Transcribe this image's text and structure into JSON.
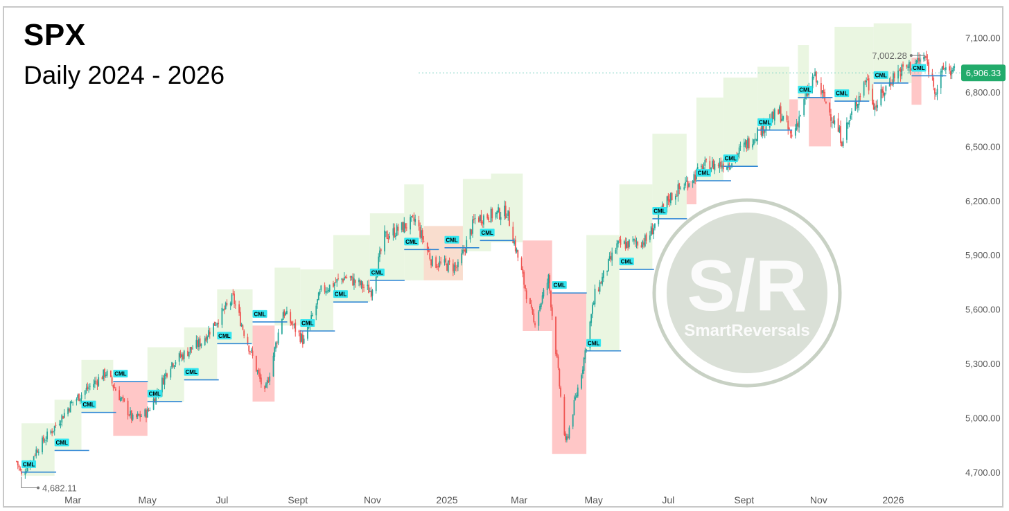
{
  "chart_data": {
    "type": "candlestick",
    "title": "SPX",
    "subtitle": "Daily 2024 - 2026",
    "watermark": {
      "main": "S/R",
      "sub": "SmartReversals"
    },
    "y_axis": {
      "range": [
        4600,
        7240
      ],
      "ticks": [
        "7,100.00",
        "6,800.00",
        "6,500.00",
        "6,200.00",
        "5,900.00",
        "5,600.00",
        "5,300.00",
        "5,000.00",
        "4,700.00"
      ],
      "tick_values": [
        7100,
        6800,
        6500,
        6200,
        5900,
        5600,
        5300,
        5000,
        4700
      ]
    },
    "x_axis": {
      "range": [
        "2024-01-15",
        "2026-02-25"
      ],
      "labels": [
        "Mar",
        "May",
        "Jul",
        "Sept",
        "Nov",
        "2025",
        "Mar",
        "May",
        "Jul",
        "Sept",
        "Nov",
        "2026"
      ],
      "label_dates": [
        "2024-03-01",
        "2024-05-01",
        "2024-07-01",
        "2024-09-01",
        "2024-11-01",
        "2025-01-01",
        "2025-03-01",
        "2025-05-01",
        "2025-07-01",
        "2025-09-01",
        "2025-11-01",
        "2026-01-01"
      ]
    },
    "annotations": {
      "high": {
        "label": "7,002.28",
        "value": 7002.28,
        "date": "2026-01-27"
      },
      "low": {
        "label": "4,682.11",
        "value": 4682.11,
        "date": "2024-01-19"
      },
      "last_price": {
        "label": "6,906.33",
        "value": 6906.33
      }
    },
    "price_path": [
      [
        "2024-01-15",
        4760
      ],
      [
        "2024-01-19",
        4682
      ],
      [
        "2024-02-01",
        4830
      ],
      [
        "2024-02-15",
        4950
      ],
      [
        "2024-03-01",
        5090
      ],
      [
        "2024-03-28",
        5250
      ],
      [
        "2024-04-19",
        4990
      ],
      [
        "2024-05-01",
        5030
      ],
      [
        "2024-05-20",
        5300
      ],
      [
        "2024-06-14",
        5420
      ],
      [
        "2024-07-10",
        5660
      ],
      [
        "2024-08-05",
        5130
      ],
      [
        "2024-08-20",
        5590
      ],
      [
        "2024-09-06",
        5420
      ],
      [
        "2024-09-20",
        5700
      ],
      [
        "2024-10-10",
        5780
      ],
      [
        "2024-10-31",
        5700
      ],
      [
        "2024-11-11",
        6000
      ],
      [
        "2024-12-06",
        6090
      ],
      [
        "2024-12-20",
        5860
      ],
      [
        "2025-01-10",
        5830
      ],
      [
        "2025-01-24",
        6100
      ],
      [
        "2025-02-19",
        6140
      ],
      [
        "2025-03-13",
        5520
      ],
      [
        "2025-03-25",
        5770
      ],
      [
        "2025-04-08",
        4850
      ],
      [
        "2025-04-22",
        5290
      ],
      [
        "2025-05-02",
        5680
      ],
      [
        "2025-05-20",
        5950
      ],
      [
        "2025-06-13",
        5980
      ],
      [
        "2025-07-01",
        6210
      ],
      [
        "2025-07-31",
        6390
      ],
      [
        "2025-08-20",
        6410
      ],
      [
        "2025-09-12",
        6580
      ],
      [
        "2025-09-30",
        6690
      ],
      [
        "2025-10-10",
        6550
      ],
      [
        "2025-10-28",
        6890
      ],
      [
        "2025-11-20",
        6540
      ],
      [
        "2025-12-10",
        6880
      ],
      [
        "2025-12-17",
        6720
      ],
      [
        "2026-01-02",
        6900
      ],
      [
        "2026-01-27",
        6990
      ],
      [
        "2026-02-05",
        6810
      ],
      [
        "2026-02-12",
        6940
      ],
      [
        "2026-02-20",
        6906
      ]
    ],
    "zones": [
      {
        "type": "bull",
        "start": "2024-01-19",
        "end": "2024-02-15",
        "low": 4680,
        "high": 4970
      },
      {
        "type": "bull",
        "start": "2024-02-15",
        "end": "2024-03-08",
        "low": 4820,
        "high": 5100
      },
      {
        "type": "bull",
        "start": "2024-03-08",
        "end": "2024-04-03",
        "low": 5030,
        "high": 5320
      },
      {
        "type": "bear",
        "start": "2024-04-03",
        "end": "2024-05-01",
        "low": 4900,
        "high": 5200
      },
      {
        "type": "bull",
        "start": "2024-05-01",
        "end": "2024-05-31",
        "low": 5090,
        "high": 5390
      },
      {
        "type": "bull",
        "start": "2024-05-31",
        "end": "2024-06-27",
        "low": 5210,
        "high": 5500
      },
      {
        "type": "bull",
        "start": "2024-06-27",
        "end": "2024-07-26",
        "low": 5410,
        "high": 5710
      },
      {
        "type": "bear",
        "start": "2024-07-26",
        "end": "2024-08-13",
        "low": 5090,
        "high": 5510
      },
      {
        "type": "bull",
        "start": "2024-08-13",
        "end": "2024-09-03",
        "low": 5510,
        "high": 5830
      },
      {
        "type": "bull",
        "start": "2024-09-03",
        "end": "2024-09-30",
        "low": 5480,
        "high": 5820
      },
      {
        "type": "bull",
        "start": "2024-09-30",
        "end": "2024-10-30",
        "low": 5640,
        "high": 6010
      },
      {
        "type": "bull",
        "start": "2024-10-30",
        "end": "2024-11-27",
        "low": 5760,
        "high": 6130
      },
      {
        "type": "bull",
        "start": "2024-11-27",
        "end": "2024-12-13",
        "low": 5760,
        "high": 6290
      },
      {
        "type": "neutral",
        "start": "2024-12-13",
        "end": "2025-01-14",
        "low": 5760,
        "high": 6060
      },
      {
        "type": "bull",
        "start": "2025-01-14",
        "end": "2025-02-06",
        "low": 5920,
        "high": 6320
      },
      {
        "type": "bull",
        "start": "2025-02-06",
        "end": "2025-03-04",
        "low": 5970,
        "high": 6350
      },
      {
        "type": "bear",
        "start": "2025-03-04",
        "end": "2025-03-28",
        "low": 5480,
        "high": 5980
      },
      {
        "type": "bear",
        "start": "2025-03-28",
        "end": "2025-04-25",
        "low": 4800,
        "high": 5690
      },
      {
        "type": "bull",
        "start": "2025-04-25",
        "end": "2025-05-22",
        "low": 5370,
        "high": 6010
      },
      {
        "type": "bull",
        "start": "2025-05-22",
        "end": "2025-06-18",
        "low": 5820,
        "high": 6290
      },
      {
        "type": "bull",
        "start": "2025-06-18",
        "end": "2025-07-16",
        "low": 6100,
        "high": 6570
      },
      {
        "type": "bear",
        "start": "2025-07-16",
        "end": "2025-07-24",
        "low": 6180,
        "high": 6310
      },
      {
        "type": "bull",
        "start": "2025-07-24",
        "end": "2025-08-15",
        "low": 6310,
        "high": 6770
      },
      {
        "type": "bull",
        "start": "2025-08-15",
        "end": "2025-09-12",
        "low": 6390,
        "high": 6880
      },
      {
        "type": "bull",
        "start": "2025-09-12",
        "end": "2025-10-08",
        "low": 6590,
        "high": 6940
      },
      {
        "type": "bear",
        "start": "2025-10-08",
        "end": "2025-10-15",
        "low": 6610,
        "high": 6760
      },
      {
        "type": "bull",
        "start": "2025-10-15",
        "end": "2025-10-24",
        "low": 6760,
        "high": 7060
      },
      {
        "type": "bear",
        "start": "2025-10-24",
        "end": "2025-11-11",
        "low": 6500,
        "high": 6770
      },
      {
        "type": "bull",
        "start": "2025-11-14",
        "end": "2025-12-16",
        "low": 6750,
        "high": 7160
      },
      {
        "type": "bull",
        "start": "2025-12-16",
        "end": "2026-01-16",
        "low": 6850,
        "high": 7180
      },
      {
        "type": "bear",
        "start": "2026-01-16",
        "end": "2026-01-24",
        "low": 6730,
        "high": 6990
      }
    ],
    "cml_levels": [
      {
        "date": "2024-01-19",
        "price": 4700
      },
      {
        "date": "2024-02-15",
        "price": 4820
      },
      {
        "date": "2024-03-08",
        "price": 5030
      },
      {
        "date": "2024-04-03",
        "price": 5200
      },
      {
        "date": "2024-05-01",
        "price": 5090
      },
      {
        "date": "2024-05-31",
        "price": 5210
      },
      {
        "date": "2024-06-27",
        "price": 5410
      },
      {
        "date": "2024-07-26",
        "price": 5530
      },
      {
        "date": "2024-09-03",
        "price": 5480
      },
      {
        "date": "2024-09-30",
        "price": 5640
      },
      {
        "date": "2024-10-30",
        "price": 5760
      },
      {
        "date": "2024-11-27",
        "price": 5930
      },
      {
        "date": "2024-12-30",
        "price": 5940
      },
      {
        "date": "2025-01-28",
        "price": 5980
      },
      {
        "date": "2025-03-28",
        "price": 5690
      },
      {
        "date": "2025-04-25",
        "price": 5370
      },
      {
        "date": "2025-05-22",
        "price": 5820
      },
      {
        "date": "2025-06-18",
        "price": 6100
      },
      {
        "date": "2025-07-24",
        "price": 6310
      },
      {
        "date": "2025-08-15",
        "price": 6390
      },
      {
        "date": "2025-09-12",
        "price": 6590
      },
      {
        "date": "2025-10-15",
        "price": 6770
      },
      {
        "date": "2025-11-14",
        "price": 6750
      },
      {
        "date": "2025-12-16",
        "price": 6850
      },
      {
        "date": "2026-01-16",
        "price": 6890
      }
    ],
    "cml_label": "CML",
    "colors": {
      "up": "#26a69a",
      "down": "#ef5350",
      "bull_zone": "#e6f5dc",
      "bear_zone": "#ffc4c4",
      "neutral_zone": "#f9dbcb",
      "cml_line": "#2e86d4",
      "cml_tag": "#33e6f0",
      "axis_text": "#555555",
      "last_price_bg": "#22ab6b",
      "watermark": "#b5c2b0"
    }
  }
}
